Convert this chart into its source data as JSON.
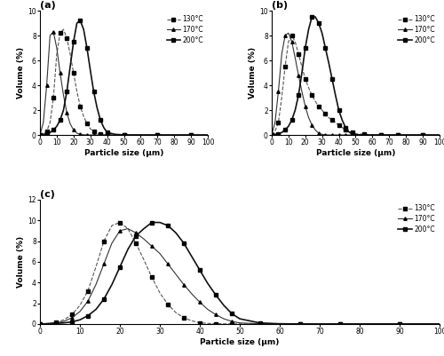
{
  "title_a": "(a)",
  "title_b": "(b)",
  "title_c": "(c)",
  "xlabel": "Particle size (μm)",
  "ylabel": "Volume (%)",
  "legend_labels": [
    "130°C",
    "170°C",
    "200°C"
  ],
  "panel_a": {
    "x": [
      0,
      2,
      4,
      6,
      8,
      10,
      12,
      14,
      16,
      18,
      20,
      22,
      24,
      26,
      28,
      30,
      32,
      34,
      36,
      38,
      40,
      45,
      50,
      60,
      70,
      80,
      90,
      100
    ],
    "y_130": [
      0,
      0.1,
      0.3,
      1.0,
      3.0,
      6.5,
      8.2,
      8.5,
      7.8,
      6.5,
      5.0,
      3.5,
      2.3,
      1.5,
      0.9,
      0.5,
      0.3,
      0.15,
      0.05,
      0.02,
      0.01,
      0,
      0,
      0,
      0,
      0,
      0,
      0
    ],
    "y_170": [
      0,
      1.0,
      4.0,
      8.0,
      8.3,
      7.0,
      5.0,
      3.2,
      1.8,
      0.9,
      0.4,
      0.15,
      0.05,
      0.02,
      0,
      0,
      0,
      0,
      0,
      0,
      0,
      0,
      0,
      0,
      0,
      0,
      0,
      0
    ],
    "y_200": [
      0,
      0.05,
      0.1,
      0.2,
      0.4,
      0.7,
      1.2,
      2.0,
      3.5,
      5.5,
      7.5,
      9.0,
      9.2,
      8.5,
      7.0,
      5.2,
      3.5,
      2.2,
      1.2,
      0.6,
      0.2,
      0.05,
      0.01,
      0,
      0,
      0,
      0,
      0
    ],
    "ylim": [
      0,
      10
    ],
    "yticks": [
      0,
      2,
      4,
      6,
      8,
      10
    ],
    "xlim": [
      0,
      100
    ],
    "xticks": [
      0,
      10,
      20,
      30,
      40,
      50,
      60,
      70,
      80,
      90,
      100
    ]
  },
  "panel_b": {
    "x": [
      0,
      2,
      4,
      6,
      8,
      10,
      12,
      14,
      16,
      18,
      20,
      22,
      24,
      26,
      28,
      30,
      32,
      34,
      36,
      38,
      40,
      42,
      44,
      46,
      48,
      50,
      55,
      60,
      65,
      70,
      75,
      80,
      90,
      100
    ],
    "y_130": [
      0,
      0.3,
      1.0,
      3.0,
      5.5,
      7.5,
      8.0,
      7.5,
      6.5,
      5.5,
      4.5,
      3.8,
      3.2,
      2.7,
      2.3,
      2.0,
      1.7,
      1.4,
      1.2,
      1.0,
      0.8,
      0.6,
      0.4,
      0.3,
      0.2,
      0.1,
      0.05,
      0.02,
      0.01,
      0,
      0,
      0,
      0,
      0
    ],
    "y_170": [
      0,
      1.0,
      3.5,
      6.5,
      8.0,
      8.2,
      7.5,
      6.2,
      4.8,
      3.5,
      2.3,
      1.4,
      0.8,
      0.4,
      0.15,
      0.05,
      0.02,
      0,
      0,
      0,
      0,
      0,
      0,
      0,
      0,
      0,
      0,
      0,
      0,
      0,
      0,
      0,
      0,
      0
    ],
    "y_200": [
      0,
      0.05,
      0.1,
      0.2,
      0.4,
      0.7,
      1.2,
      2.0,
      3.2,
      5.0,
      7.0,
      8.5,
      9.5,
      9.5,
      9.0,
      8.2,
      7.0,
      5.8,
      4.5,
      3.2,
      2.0,
      1.2,
      0.6,
      0.25,
      0.08,
      0.02,
      0,
      0,
      0,
      0,
      0,
      0,
      0,
      0
    ],
    "ylim": [
      0,
      10
    ],
    "yticks": [
      0,
      2,
      4,
      6,
      8,
      10
    ],
    "xlim": [
      0,
      100
    ],
    "xticks": [
      0,
      10,
      20,
      30,
      40,
      50,
      60,
      70,
      80,
      90,
      100
    ]
  },
  "panel_c": {
    "x": [
      0,
      2,
      4,
      6,
      8,
      10,
      12,
      14,
      16,
      18,
      20,
      22,
      24,
      26,
      28,
      30,
      32,
      34,
      36,
      38,
      40,
      42,
      44,
      46,
      48,
      50,
      55,
      60,
      65,
      70,
      75,
      80,
      90,
      100
    ],
    "y_130": [
      0,
      0.05,
      0.15,
      0.4,
      0.9,
      1.8,
      3.2,
      5.5,
      8.0,
      9.5,
      9.8,
      9.2,
      7.8,
      6.2,
      4.5,
      3.0,
      1.9,
      1.1,
      0.6,
      0.3,
      0.12,
      0.05,
      0.02,
      0.01,
      0,
      0,
      0,
      0,
      0,
      0,
      0,
      0,
      0,
      0
    ],
    "y_170": [
      0,
      0.05,
      0.1,
      0.25,
      0.6,
      1.2,
      2.2,
      3.8,
      5.8,
      7.8,
      9.0,
      9.2,
      8.8,
      8.2,
      7.5,
      6.8,
      5.8,
      4.8,
      3.8,
      2.9,
      2.1,
      1.4,
      0.9,
      0.5,
      0.25,
      0.1,
      0.02,
      0,
      0,
      0,
      0,
      0,
      0,
      0
    ],
    "y_200": [
      0,
      0.02,
      0.05,
      0.1,
      0.2,
      0.4,
      0.8,
      1.4,
      2.4,
      3.8,
      5.5,
      7.2,
      8.5,
      9.2,
      9.8,
      9.8,
      9.5,
      8.8,
      7.8,
      6.5,
      5.2,
      3.9,
      2.8,
      1.8,
      1.0,
      0.5,
      0.1,
      0.02,
      0,
      0,
      0,
      0,
      0,
      0
    ],
    "ylim": [
      0,
      12
    ],
    "yticks": [
      0,
      2,
      4,
      6,
      8,
      10,
      12
    ],
    "xlim": [
      0,
      100
    ],
    "xticks": [
      0,
      10,
      20,
      30,
      40,
      50,
      60,
      70,
      80,
      90,
      100
    ]
  },
  "line_styles": {
    "130": {
      "color": "#555555",
      "linestyle": "--",
      "marker": "s",
      "markersize": 2.5,
      "linewidth": 0.8,
      "markevery": 2
    },
    "170": {
      "color": "#333333",
      "linestyle": "-",
      "marker": "^",
      "markersize": 2.5,
      "linewidth": 0.8,
      "markevery": 2
    },
    "200": {
      "color": "#111111",
      "linestyle": "-",
      "marker": "s",
      "markersize": 2.5,
      "linewidth": 1.2,
      "markevery": 2
    }
  },
  "background_color": "#ffffff",
  "label_fontsize": 6.5,
  "tick_fontsize": 5.5,
  "legend_fontsize": 5.5,
  "title_fontsize": 8
}
